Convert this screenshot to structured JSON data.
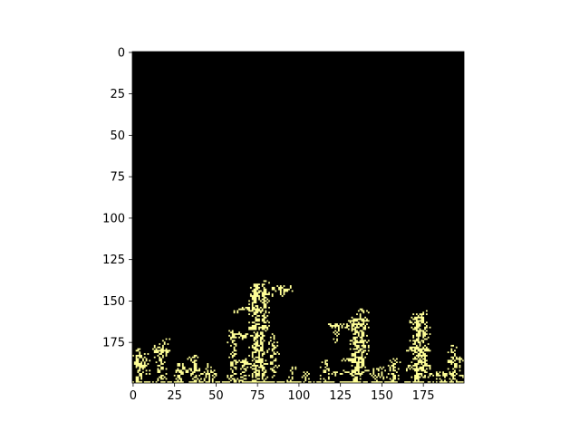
{
  "colors": {
    "background": "#000000",
    "cluster": "#fdfd96",
    "axis": "#000000"
  },
  "chart_data": {
    "type": "heatmap",
    "title": "",
    "xlabel": "",
    "ylabel": "",
    "grid_size": [
      200,
      200
    ],
    "xlim": [
      0,
      200
    ],
    "ylim": [
      200,
      0
    ],
    "grid": false,
    "x_ticks": [
      0,
      25,
      50,
      75,
      100,
      125,
      150,
      175
    ],
    "y_ticks": [
      0,
      25,
      50,
      75,
      100,
      125,
      150,
      175
    ],
    "x_tick_labels": [
      "0",
      "25",
      "50",
      "75",
      "100",
      "125",
      "150",
      "175"
    ],
    "y_tick_labels": [
      "0",
      "25",
      "50",
      "75",
      "100",
      "125",
      "150",
      "175"
    ],
    "seed_row": 199,
    "branches": [
      {
        "x": 3,
        "rows": [
          179,
          199
        ],
        "width": 2
      },
      {
        "x": 7,
        "rows": [
          182,
          195
        ],
        "width": 1
      },
      {
        "x": 16,
        "rows": [
          176,
          199
        ],
        "width": 2
      },
      {
        "x": 19,
        "rows": [
          173,
          183
        ],
        "width": 1
      },
      {
        "x": 28,
        "rows": [
          188,
          199
        ],
        "width": 2
      },
      {
        "x": 36,
        "rows": [
          183,
          199
        ],
        "width": 2
      },
      {
        "x": 44,
        "rows": [
          188,
          199
        ],
        "width": 1
      },
      {
        "x": 49,
        "rows": [
          192,
          199
        ],
        "width": 1
      },
      {
        "x": 60,
        "rows": [
          168,
          199
        ],
        "width": 2
      },
      {
        "x": 66,
        "rows": [
          186,
          199
        ],
        "width": 2
      },
      {
        "x": 73,
        "rows": [
          140,
          199
        ],
        "width": 3
      },
      {
        "x": 78,
        "rows": [
          138,
          199
        ],
        "width": 2
      },
      {
        "x": 84,
        "rows": [
          170,
          196
        ],
        "width": 2
      },
      {
        "x": 90,
        "rows": [
          141,
          147
        ],
        "width": 1
      },
      {
        "x": 95,
        "rows": [
          190,
          199
        ],
        "width": 1
      },
      {
        "x": 103,
        "rows": [
          193,
          199
        ],
        "width": 1
      },
      {
        "x": 116,
        "rows": [
          186,
          199
        ],
        "width": 2
      },
      {
        "x": 123,
        "rows": [
          163,
          175
        ],
        "width": 1
      },
      {
        "x": 133,
        "rows": [
          160,
          199
        ],
        "width": 3
      },
      {
        "x": 138,
        "rows": [
          155,
          190
        ],
        "width": 2
      },
      {
        "x": 146,
        "rows": [
          191,
          199
        ],
        "width": 1
      },
      {
        "x": 151,
        "rows": [
          190,
          199
        ],
        "width": 1
      },
      {
        "x": 157,
        "rows": [
          185,
          199
        ],
        "width": 2
      },
      {
        "x": 170,
        "rows": [
          158,
          199
        ],
        "width": 3
      },
      {
        "x": 175,
        "rows": [
          156,
          196
        ],
        "width": 2
      },
      {
        "x": 186,
        "rows": [
          193,
          199
        ],
        "width": 1
      },
      {
        "x": 193,
        "rows": [
          177,
          199
        ],
        "width": 2
      }
    ],
    "arms": [
      {
        "row": 189,
        "x": [
          1,
          9
        ]
      },
      {
        "row": 180,
        "x": [
          12,
          21
        ]
      },
      {
        "row": 192,
        "x": [
          26,
          40
        ]
      },
      {
        "row": 194,
        "x": [
          41,
          50
        ]
      },
      {
        "row": 155,
        "x": [
          61,
          77
        ]
      },
      {
        "row": 171,
        "x": [
          58,
          72
        ]
      },
      {
        "row": 146,
        "x": [
          71,
          84
        ]
      },
      {
        "row": 143,
        "x": [
          84,
          96
        ]
      },
      {
        "row": 166,
        "x": [
          70,
          82
        ]
      },
      {
        "row": 187,
        "x": [
          65,
          78
        ]
      },
      {
        "row": 165,
        "x": [
          118,
          137
        ]
      },
      {
        "row": 162,
        "x": [
          130,
          142
        ]
      },
      {
        "row": 175,
        "x": [
          131,
          141
        ]
      },
      {
        "row": 186,
        "x": [
          126,
          140
        ]
      },
      {
        "row": 193,
        "x": [
          120,
          143
        ]
      },
      {
        "row": 179,
        "x": [
          164,
          178
        ]
      },
      {
        "row": 163,
        "x": [
          167,
          176
        ]
      },
      {
        "row": 190,
        "x": [
          163,
          179
        ]
      },
      {
        "row": 186,
        "x": [
          190,
          199
        ]
      },
      {
        "row": 195,
        "x": [
          180,
          199
        ]
      }
    ]
  }
}
